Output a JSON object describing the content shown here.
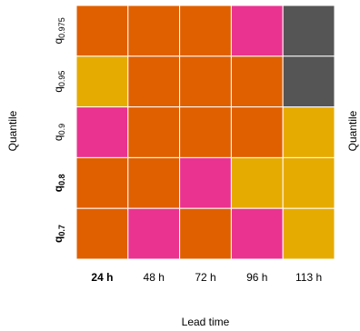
{
  "chart_data": {
    "type": "heatmap",
    "title": "",
    "xlabel": "Lead time",
    "ylabel": "Quantile",
    "ylabel_right": "Quantile",
    "x_categories": [
      {
        "label": "24 h",
        "bold": true
      },
      {
        "label": "48 h",
        "bold": false
      },
      {
        "label": "72 h",
        "bold": false
      },
      {
        "label": "96 h",
        "bold": false
      },
      {
        "label": "113 h",
        "bold": false
      }
    ],
    "y_categories": [
      {
        "base": "q",
        "sub": "0.975",
        "bold": false
      },
      {
        "base": "q",
        "sub": "0.95",
        "bold": false
      },
      {
        "base": "q",
        "sub": "0.9",
        "bold": false
      },
      {
        "base": "q",
        "sub": "0.8",
        "bold": true
      },
      {
        "base": "q",
        "sub": "0.7",
        "bold": true
      }
    ],
    "cell_colors": [
      [
        "#e06000",
        "#e06000",
        "#e06000",
        "#ea3390",
        "#555555"
      ],
      [
        "#e6ab00",
        "#e06000",
        "#e06000",
        "#e06000",
        "#555555"
      ],
      [
        "#ea3390",
        "#e06000",
        "#e06000",
        "#e06000",
        "#e6ab00"
      ],
      [
        "#e06000",
        "#e06000",
        "#ea3390",
        "#e6ab00",
        "#e6ab00"
      ],
      [
        "#e06000",
        "#ea3390",
        "#e06000",
        "#ea3390",
        "#e6ab00"
      ]
    ],
    "grid_line_color": "#ffffff",
    "legend": "none"
  }
}
